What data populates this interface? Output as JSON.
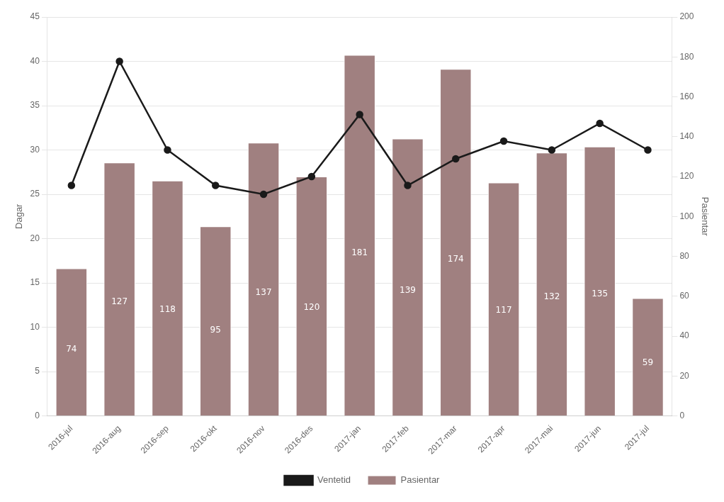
{
  "chart_data": {
    "type": "bar",
    "categories": [
      "2016-jul",
      "2016-aug",
      "2016-sep",
      "2016-okt",
      "2016-nov",
      "2016-des",
      "2017-jan",
      "2017-feb",
      "2017-mar",
      "2017-apr",
      "2017-mai",
      "2017-jun",
      "2017-jul"
    ],
    "series": [
      {
        "name": "Pasientar",
        "type": "bar",
        "axis": "y2",
        "color": "#a08080",
        "data_labels": true,
        "values": [
          74,
          127,
          118,
          95,
          137,
          120,
          181,
          139,
          174,
          117,
          132,
          135,
          59
        ]
      },
      {
        "name": "Ventetid",
        "type": "line",
        "color": "#1a1a1a",
        "marker": "circle",
        "values": [
          26,
          40,
          30,
          26,
          25,
          27,
          34,
          26,
          29,
          31,
          30,
          33,
          30
        ]
      }
    ],
    "ylabel": "Dagar",
    "y2label": "Pasientar",
    "ylim": [
      0,
      45
    ],
    "yticks": [
      0,
      5,
      10,
      15,
      20,
      25,
      30,
      35,
      40,
      45
    ],
    "y2lim": [
      0,
      200
    ],
    "y2ticks": [
      0,
      20,
      40,
      60,
      80,
      100,
      120,
      140,
      160,
      180,
      200
    ],
    "grid": true,
    "legend": "bottom"
  }
}
